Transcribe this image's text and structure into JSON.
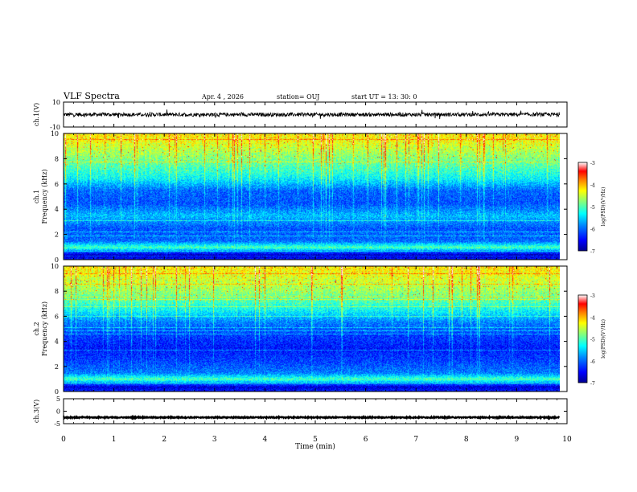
{
  "header": {
    "title": "VLF Spectra",
    "date": "Apr. 4 , 2026",
    "station": "station= OUJ",
    "start": "start UT = 13: 30: 0"
  },
  "colors": {
    "colormap": [
      "#00008f",
      "#0000ff",
      "#0080ff",
      "#00ffff",
      "#80ff80",
      "#ffff00",
      "#ff8000",
      "#ff0000",
      "#ffffff"
    ],
    "waveform": "#000000"
  },
  "chart_data": [
    {
      "type": "line",
      "name": "waveform-ch1",
      "ylabel": "ch.1(V)",
      "ylim": [
        -10,
        10
      ],
      "yticks": [
        "10",
        "-10"
      ],
      "xlim": [
        0,
        10
      ],
      "mean": 0,
      "amplitude_approx": 1.5,
      "extent_min": 9.85
    },
    {
      "type": "heatmap",
      "name": "spectrogram-ch1",
      "ylabel": "ch.1\nFrequency (kHz)",
      "ylim": [
        0,
        10
      ],
      "yticks": [
        "0",
        "2",
        "4",
        "6",
        "8",
        "10"
      ],
      "xlim": [
        0,
        10
      ],
      "extent_min": 9.85,
      "colorbar": {
        "label": "log(PSD)(V²/Hz)",
        "range": [
          -7,
          -3
        ],
        "ticks": [
          "-3",
          "-4",
          "-5",
          "-6",
          "-7"
        ]
      },
      "level_profile": [
        {
          "f_khz": 0,
          "logpsd": -6.4
        },
        {
          "f_khz": 0.4,
          "logpsd": -6.8
        },
        {
          "f_khz": 1.0,
          "logpsd": -5.0
        },
        {
          "f_khz": 1.5,
          "logpsd": -6.0
        },
        {
          "f_khz": 2.5,
          "logpsd": -6.1
        },
        {
          "f_khz": 3.5,
          "logpsd": -5.6
        },
        {
          "f_khz": 4.5,
          "logpsd": -6.1
        },
        {
          "f_khz": 5.5,
          "logpsd": -6.0
        },
        {
          "f_khz": 6.5,
          "logpsd": -5.3
        },
        {
          "f_khz": 8.0,
          "logpsd": -4.8
        },
        {
          "f_khz": 9.5,
          "logpsd": -4.3
        },
        {
          "f_khz": 10,
          "logpsd": -4.2
        }
      ]
    },
    {
      "type": "heatmap",
      "name": "spectrogram-ch2",
      "ylabel": "ch.2\nFrequency (kHz)",
      "ylim": [
        0,
        10
      ],
      "yticks": [
        "0",
        "2",
        "4",
        "6",
        "8",
        "10"
      ],
      "xlim": [
        0,
        10
      ],
      "extent_min": 9.85,
      "colorbar": {
        "label": "log(PSD)(V²/Hz)",
        "range": [
          -7,
          -3
        ],
        "ticks": [
          "-3",
          "-4",
          "-5",
          "-6",
          "-7"
        ]
      },
      "level_profile": [
        {
          "f_khz": 0,
          "logpsd": -6.3
        },
        {
          "f_khz": 0.4,
          "logpsd": -6.7
        },
        {
          "f_khz": 1.0,
          "logpsd": -5.0
        },
        {
          "f_khz": 1.5,
          "logpsd": -5.9
        },
        {
          "f_khz": 2.5,
          "logpsd": -6.2
        },
        {
          "f_khz": 3.5,
          "logpsd": -6.4
        },
        {
          "f_khz": 4.5,
          "logpsd": -6.2
        },
        {
          "f_khz": 5.5,
          "logpsd": -5.9
        },
        {
          "f_khz": 6.5,
          "logpsd": -5.3
        },
        {
          "f_khz": 8.0,
          "logpsd": -4.7
        },
        {
          "f_khz": 9.5,
          "logpsd": -4.3
        },
        {
          "f_khz": 10,
          "logpsd": -4.2
        }
      ]
    },
    {
      "type": "line",
      "name": "waveform-ch3",
      "ylabel": "ch.3(V)",
      "ylim": [
        -5,
        5
      ],
      "yticks": [
        "5",
        "0",
        "-5"
      ],
      "xlim": [
        0,
        10
      ],
      "mean": -2.5,
      "amplitude_approx": 0.2,
      "extent_min": 9.85
    }
  ],
  "xaxis": {
    "label": "Time (min)",
    "ticks": [
      "0",
      "1",
      "2",
      "3",
      "4",
      "5",
      "6",
      "7",
      "8",
      "9",
      "10"
    ]
  }
}
